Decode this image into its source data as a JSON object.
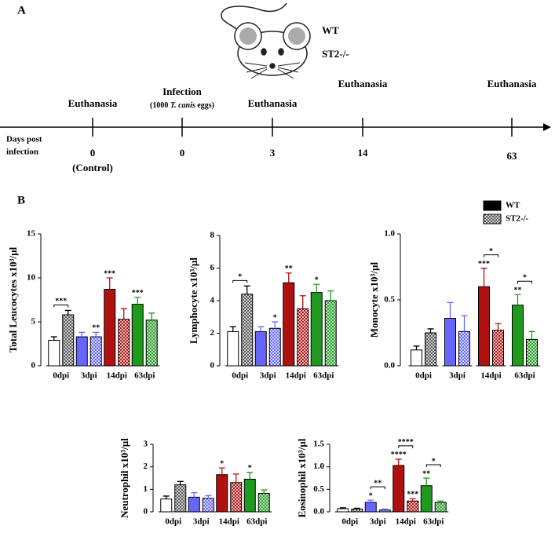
{
  "panel_a": {
    "label": "A",
    "legend": [
      "WT",
      "ST2-/-"
    ],
    "axis_label": [
      "Days post",
      "infection"
    ],
    "events": [
      {
        "label": "Euthanasia",
        "day": "0",
        "day_note": "(Control)"
      },
      {
        "label": "Infection",
        "note": [
          "(1000 ",
          "T. canis",
          " eggs)"
        ],
        "day": "0"
      },
      {
        "label": "Euthanasia",
        "day": "3"
      },
      {
        "label": "Euthanasia",
        "day": "14"
      },
      {
        "label": "Euthanasia",
        "day": "63"
      }
    ]
  },
  "panel_b_label": "B",
  "category_colors": [
    "#ffffff",
    "#6666ff",
    "#b01010",
    "#1f9a1f"
  ],
  "legend": "top-right",
  "chart_data": [
    {
      "type": "bar",
      "ylabel": "Total Leucocytes x10³/µl",
      "categories": [
        "0dpi",
        "3dpi",
        "14dpi",
        "63dpi"
      ],
      "series": [
        {
          "name": "WT",
          "color": "#000000",
          "hatch": false,
          "values": [
            2.9,
            3.3,
            8.7,
            7.0
          ],
          "errors": [
            0.4,
            0.5,
            1.3,
            0.8
          ],
          "stars": [
            null,
            null,
            "***",
            "***"
          ]
        },
        {
          "name": "ST2-/-",
          "color": "#000000",
          "hatch": true,
          "values": [
            5.8,
            3.3,
            5.3,
            5.2
          ],
          "errors": [
            0.5,
            0.5,
            1.2,
            0.8
          ],
          "stars": [
            null,
            "**",
            null,
            null
          ]
        }
      ],
      "brackets": [
        "***",
        null,
        null,
        null
      ],
      "ylim": [
        0,
        15
      ],
      "yticks": [
        0,
        5,
        10,
        15
      ]
    },
    {
      "type": "bar",
      "ylabel": "Lymphocyte x10³/µl",
      "categories": [
        "0dpi",
        "3dpi",
        "14dpi",
        "63dpi"
      ],
      "series": [
        {
          "name": "WT",
          "color": "#000000",
          "hatch": false,
          "values": [
            2.1,
            2.1,
            5.1,
            4.5
          ],
          "errors": [
            0.3,
            0.3,
            0.6,
            0.5
          ],
          "stars": [
            null,
            null,
            "**",
            "*"
          ]
        },
        {
          "name": "ST2-/-",
          "color": "#000000",
          "hatch": true,
          "values": [
            4.4,
            2.3,
            3.5,
            4.0
          ],
          "errors": [
            0.5,
            0.4,
            0.8,
            0.6
          ],
          "stars": [
            null,
            "*",
            null,
            null
          ]
        }
      ],
      "brackets": [
        "*",
        null,
        null,
        null
      ],
      "ylim": [
        0,
        8
      ],
      "yticks": [
        0,
        2,
        4,
        6,
        8
      ]
    },
    {
      "type": "bar",
      "ylabel": "Monocyte x10³/µl",
      "categories": [
        "0dpi",
        "3dpi",
        "14dpi",
        "63dpi"
      ],
      "series": [
        {
          "name": "WT",
          "color": "#000000",
          "hatch": false,
          "values": [
            0.12,
            0.36,
            0.6,
            0.46
          ],
          "errors": [
            0.03,
            0.12,
            0.14,
            0.08
          ],
          "stars": [
            null,
            null,
            "***",
            "**"
          ]
        },
        {
          "name": "ST2-/-",
          "color": "#000000",
          "hatch": true,
          "values": [
            0.25,
            0.26,
            0.27,
            0.2
          ],
          "errors": [
            0.03,
            0.12,
            0.05,
            0.06
          ],
          "stars": [
            null,
            null,
            null,
            null
          ]
        }
      ],
      "brackets": [
        null,
        null,
        "*",
        "*"
      ],
      "ylim": [
        0,
        1.0
      ],
      "yticks": [
        {
          "value": 0,
          "label": "0.0"
        },
        {
          "value": 0.5,
          "label": "0.5"
        },
        {
          "value": 1.0,
          "label": "1.0"
        }
      ]
    },
    {
      "type": "bar",
      "ylabel": "Neutrophil x10³/µl",
      "categories": [
        "0dpi",
        "3dpi",
        "14dpi",
        "63dpi"
      ],
      "series": [
        {
          "name": "WT",
          "color": "#000000",
          "hatch": false,
          "values": [
            0.57,
            0.65,
            1.65,
            1.45
          ],
          "errors": [
            0.13,
            0.2,
            0.3,
            0.3
          ],
          "stars": [
            null,
            null,
            "*",
            "*"
          ]
        },
        {
          "name": "ST2-/-",
          "color": "#000000",
          "hatch": true,
          "values": [
            1.2,
            0.6,
            1.3,
            0.82
          ],
          "errors": [
            0.15,
            0.12,
            0.38,
            0.15
          ],
          "stars": [
            null,
            null,
            null,
            null
          ]
        }
      ],
      "brackets": [
        null,
        null,
        null,
        null
      ],
      "ylim": [
        0,
        3
      ],
      "yticks": [
        0,
        1,
        2,
        3
      ]
    },
    {
      "type": "bar",
      "ylabel": "Eosinophil x10³/µl",
      "categories": [
        "0dpi",
        "3dpi",
        "14dpi",
        "63dpi"
      ],
      "series": [
        {
          "name": "WT",
          "color": "#000000",
          "hatch": false,
          "values": [
            0.07,
            0.21,
            1.03,
            0.58
          ],
          "errors": [
            0.02,
            0.05,
            0.14,
            0.17
          ],
          "stars": [
            null,
            "*",
            "****",
            "**"
          ]
        },
        {
          "name": "ST2-/-",
          "color": "#000000",
          "hatch": true,
          "values": [
            0.06,
            0.04,
            0.24,
            0.21
          ],
          "errors": [
            0.02,
            0.02,
            0.05,
            0.03
          ],
          "stars": [
            null,
            null,
            "***",
            null
          ]
        }
      ],
      "brackets": [
        null,
        "**",
        "****",
        "*"
      ],
      "ylim": [
        0,
        1.5
      ],
      "yticks": [
        {
          "value": 0,
          "label": "0.0"
        },
        {
          "value": 0.5,
          "label": "0.5"
        },
        {
          "value": 1.0,
          "label": "1.0"
        },
        {
          "value": 1.5,
          "label": "1.5"
        }
      ]
    }
  ]
}
